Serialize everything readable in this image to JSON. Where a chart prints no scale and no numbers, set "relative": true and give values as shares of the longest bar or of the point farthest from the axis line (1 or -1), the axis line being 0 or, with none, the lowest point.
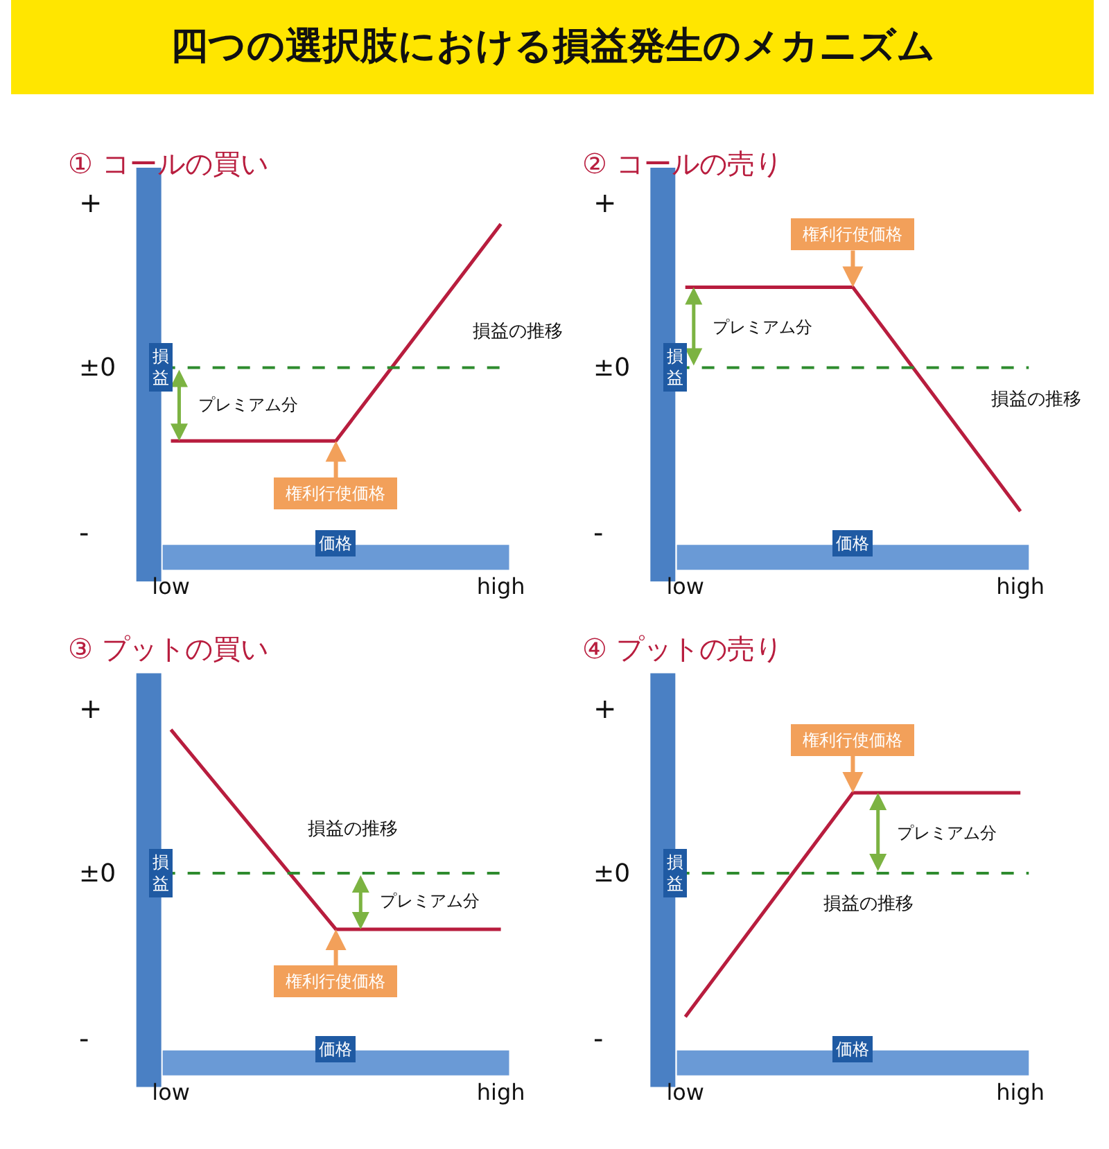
{
  "chart_data": [
    {
      "type": "other",
      "title": "四つの選択肢における損益発生のメカニズム"
    },
    {
      "type": "line",
      "title": "① コールの買い",
      "xlabel": "価格",
      "ylabel": "損益",
      "relative": true,
      "categories": [
        "low",
        null,
        "high"
      ],
      "series": [
        {
          "color": "#b81d3e",
          "values": [
            -0.51,
            -0.51,
            1
          ]
        }
      ],
      "ref_lines": [
        {
          "axis": "y",
          "value": 0,
          "label": "±0",
          "color": "#2e8b2e",
          "line_style": "dashed"
        }
      ],
      "annotations": [
        "損益の推移",
        "プレミアム分",
        "権利行使価格",
        "+",
        "-"
      ],
      "marker": "none",
      "line_style": "solid"
    },
    {
      "type": "line",
      "title": "② コールの売り",
      "xlabel": "価格",
      "ylabel": "損益",
      "relative": true,
      "categories": [
        "low",
        null,
        "high"
      ],
      "series": [
        {
          "color": "#b81d3e",
          "values": [
            0.56,
            0.56,
            -1
          ]
        }
      ],
      "ref_lines": [
        {
          "axis": "y",
          "value": 0,
          "label": "±0",
          "color": "#2e8b2e",
          "line_style": "dashed"
        }
      ],
      "annotations": [
        "損益の推移",
        "プレミアム分",
        "権利行使価格",
        "+",
        "-"
      ],
      "marker": "none",
      "line_style": "solid"
    },
    {
      "type": "line",
      "title": "③ プットの買い",
      "xlabel": "価格",
      "ylabel": "損益",
      "relative": true,
      "categories": [
        "low",
        null,
        "high"
      ],
      "series": [
        {
          "color": "#b81d3e",
          "values": [
            1,
            -0.39,
            -0.39
          ]
        }
      ],
      "ref_lines": [
        {
          "axis": "y",
          "value": 0,
          "label": "±0",
          "color": "#2e8b2e",
          "line_style": "dashed"
        }
      ],
      "annotations": [
        "損益の推移",
        "プレミアム分",
        "権利行使価格",
        "+",
        "-"
      ],
      "marker": "none",
      "line_style": "solid"
    },
    {
      "type": "line",
      "title": "④ プットの売り",
      "xlabel": "価格",
      "ylabel": "損益",
      "relative": true,
      "categories": [
        "low",
        null,
        "high"
      ],
      "series": [
        {
          "color": "#b81d3e",
          "values": [
            -1,
            0.56,
            0.56
          ]
        }
      ],
      "ref_lines": [
        {
          "axis": "y",
          "value": 0,
          "label": "±0",
          "color": "#2e8b2e",
          "line_style": "dashed"
        }
      ],
      "annotations": [
        "損益の推移",
        "プレミアム分",
        "権利行使価格",
        "+",
        "-"
      ],
      "marker": "none",
      "line_style": "solid"
    }
  ]
}
